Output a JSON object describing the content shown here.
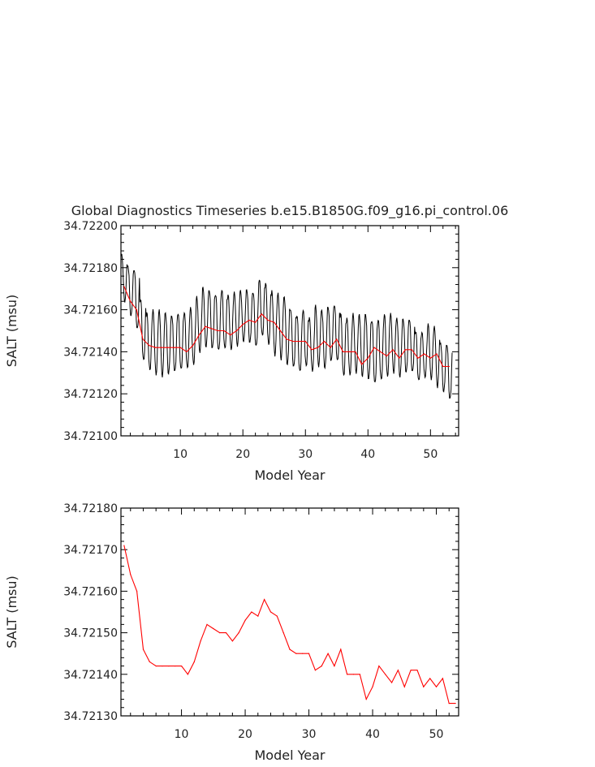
{
  "page_title": "Global Diagnostics Timeseries b.e15.B1850G.f09_g16.pi_control.06",
  "chart_data": [
    {
      "type": "line",
      "xlabel": "Model Year",
      "ylabel": "SALT (msu)",
      "xlim": [
        0.5,
        54.5
      ],
      "ylim": [
        34.721,
        34.722
      ],
      "xticks": [
        "10",
        "20",
        "30",
        "40",
        "50"
      ],
      "xtick_values": [
        10,
        20,
        30,
        40,
        50
      ],
      "yticks": [
        "34.72100",
        "34.72120",
        "34.72140",
        "34.72160",
        "34.72180",
        "34.72200"
      ],
      "ytick_values": [
        34.721,
        34.7212,
        34.7214,
        34.7216,
        34.7218,
        34.722
      ],
      "monthly_series": {
        "color": "#000000",
        "note_seasonal_amplitude": 0.00014,
        "peak_values": [
          34.72188,
          34.72183,
          34.72182,
          34.72168,
          34.72161,
          34.72162,
          34.72162,
          34.72161,
          34.7216,
          34.72161,
          34.72161,
          34.72163,
          34.72168,
          34.72173,
          34.72172,
          34.7217,
          34.72172,
          34.72169,
          34.7217,
          34.72171,
          34.72172,
          34.72171,
          34.72177,
          34.72175,
          34.72171,
          34.7217,
          34.72169,
          34.72163,
          34.7216,
          34.72162,
          34.72158,
          34.72164,
          34.72162,
          34.72164,
          34.72165,
          34.72161,
          34.72158,
          34.7216,
          34.7216,
          34.72161,
          34.72158,
          34.72158,
          34.7216,
          34.7216,
          34.72158,
          34.72158,
          34.72158,
          34.72152,
          34.72151,
          34.72155,
          34.72154,
          34.72146,
          34.72146
        ],
        "trough_values": [
          34.72162,
          34.72155,
          34.72148,
          34.72133,
          34.72129,
          34.72127,
          34.72126,
          34.72127,
          34.72128,
          34.72129,
          34.7213,
          34.72132,
          34.72138,
          34.7214,
          34.72139,
          34.72138,
          34.72139,
          34.72139,
          34.72141,
          34.72143,
          34.72142,
          34.7214,
          34.72145,
          34.72141,
          34.72136,
          34.72134,
          34.72131,
          34.7213,
          34.72128,
          34.72131,
          34.72129,
          34.72131,
          34.7213,
          34.72133,
          34.72133,
          34.72126,
          34.72127,
          34.72128,
          34.72126,
          34.72124,
          34.72122,
          34.72124,
          34.72126,
          34.72128,
          34.72126,
          34.72128,
          34.72128,
          34.72124,
          34.72126,
          34.72125,
          34.72121,
          34.72119,
          34.72115
        ]
      },
      "annual_series": {
        "color": "#ff0000",
        "x": [
          1,
          2,
          3,
          4,
          5,
          6,
          7,
          8,
          9,
          10,
          11,
          12,
          13,
          14,
          15,
          16,
          17,
          18,
          19,
          20,
          21,
          22,
          23,
          24,
          25,
          26,
          27,
          28,
          29,
          30,
          31,
          32,
          33,
          34,
          35,
          36,
          37,
          38,
          39,
          40,
          41,
          42,
          43,
          44,
          45,
          46,
          47,
          48,
          49,
          50,
          51,
          52,
          53
        ],
        "values": [
          34.72171,
          34.72164,
          34.7216,
          34.72146,
          34.72143,
          34.72142,
          34.72142,
          34.72142,
          34.72142,
          34.72142,
          34.7214,
          34.72143,
          34.72148,
          34.72152,
          34.72151,
          34.7215,
          34.7215,
          34.72148,
          34.7215,
          34.72153,
          34.72155,
          34.72154,
          34.72158,
          34.72155,
          34.72154,
          34.7215,
          34.72146,
          34.72145,
          34.72145,
          34.72145,
          34.72141,
          34.72142,
          34.72145,
          34.72142,
          34.72146,
          34.7214,
          34.7214,
          34.7214,
          34.72134,
          34.72137,
          34.72142,
          34.7214,
          34.72138,
          34.72141,
          34.72137,
          34.72141,
          34.72141,
          34.72137,
          34.72139,
          34.72137,
          34.72139,
          34.72133,
          34.72133
        ]
      }
    },
    {
      "type": "line",
      "xlabel": "Model Year",
      "ylabel": "SALT (msu)",
      "xlim": [
        0.5,
        53.5
      ],
      "ylim": [
        34.7213,
        34.7218
      ],
      "xticks": [
        "10",
        "20",
        "30",
        "40",
        "50"
      ],
      "xtick_values": [
        10,
        20,
        30,
        40,
        50
      ],
      "yticks": [
        "34.72130",
        "34.72140",
        "34.72150",
        "34.72160",
        "34.72170",
        "34.72180"
      ],
      "ytick_values": [
        34.7213,
        34.7214,
        34.7215,
        34.7216,
        34.7217,
        34.7218
      ],
      "annual_series": {
        "color": "#ff0000",
        "x": [
          1,
          2,
          3,
          4,
          5,
          6,
          7,
          8,
          9,
          10,
          11,
          12,
          13,
          14,
          15,
          16,
          17,
          18,
          19,
          20,
          21,
          22,
          23,
          24,
          25,
          26,
          27,
          28,
          29,
          30,
          31,
          32,
          33,
          34,
          35,
          36,
          37,
          38,
          39,
          40,
          41,
          42,
          43,
          44,
          45,
          46,
          47,
          48,
          49,
          50,
          51,
          52,
          53
        ],
        "values": [
          34.72171,
          34.72164,
          34.7216,
          34.72146,
          34.72143,
          34.72142,
          34.72142,
          34.72142,
          34.72142,
          34.72142,
          34.7214,
          34.72143,
          34.72148,
          34.72152,
          34.72151,
          34.7215,
          34.7215,
          34.72148,
          34.7215,
          34.72153,
          34.72155,
          34.72154,
          34.72158,
          34.72155,
          34.72154,
          34.7215,
          34.72146,
          34.72145,
          34.72145,
          34.72145,
          34.72141,
          34.72142,
          34.72145,
          34.72142,
          34.72146,
          34.7214,
          34.7214,
          34.7214,
          34.72134,
          34.72137,
          34.72142,
          34.7214,
          34.72138,
          34.72141,
          34.72137,
          34.72141,
          34.72141,
          34.72137,
          34.72139,
          34.72137,
          34.72139,
          34.72133,
          34.72133
        ]
      }
    }
  ]
}
